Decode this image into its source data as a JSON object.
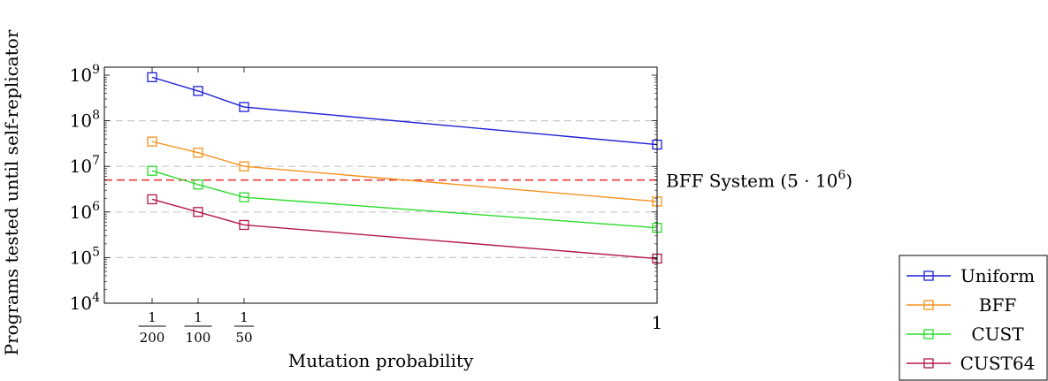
{
  "chart_data": {
    "type": "line",
    "title": "",
    "xlabel": "Mutation probability",
    "ylabel": "Programs tested until self-replicator",
    "y_scale": "log",
    "ylim": [
      10000,
      1000000000
    ],
    "x": [
      0.005,
      0.01,
      0.02,
      1
    ],
    "x_tick_labels": [
      {
        "num": "1",
        "den": "200",
        "value": 0.005
      },
      {
        "num": "1",
        "den": "100",
        "value": 0.01
      },
      {
        "num": "1",
        "den": "50",
        "value": 0.02
      },
      {
        "text": "1",
        "value": 1
      }
    ],
    "y_tick_labels": [
      {
        "base": "10",
        "exp": "4",
        "value": 10000
      },
      {
        "base": "10",
        "exp": "5",
        "value": 100000
      },
      {
        "base": "10",
        "exp": "6",
        "value": 1000000
      },
      {
        "base": "10",
        "exp": "7",
        "value": 10000000
      },
      {
        "base": "10",
        "exp": "8",
        "value": 100000000
      },
      {
        "base": "10",
        "exp": "9",
        "value": 1000000000
      }
    ],
    "grid": "horizontal dashed at major ticks",
    "legend_position": "bottom-right outside plot",
    "series": [
      {
        "name": "Uniform",
        "color": "#1f1fd6",
        "values": [
          900000000,
          450000000,
          200000000,
          30000000
        ]
      },
      {
        "name": "BFF",
        "color": "#f5921e",
        "values": [
          35000000,
          20000000,
          10000000,
          1700000
        ]
      },
      {
        "name": "CUST",
        "color": "#2bdc2b",
        "values": [
          8000000,
          4000000,
          2100000,
          450000
        ]
      },
      {
        "name": "CUST64",
        "color": "#b5174b",
        "values": [
          1900000,
          1000000,
          520000,
          95000
        ]
      }
    ],
    "reference_line": {
      "value": 5000000,
      "label": "BFF System",
      "label_math": {
        "coef": "5",
        "base": "10",
        "exp": "6"
      },
      "color": "#e83b3b"
    }
  }
}
